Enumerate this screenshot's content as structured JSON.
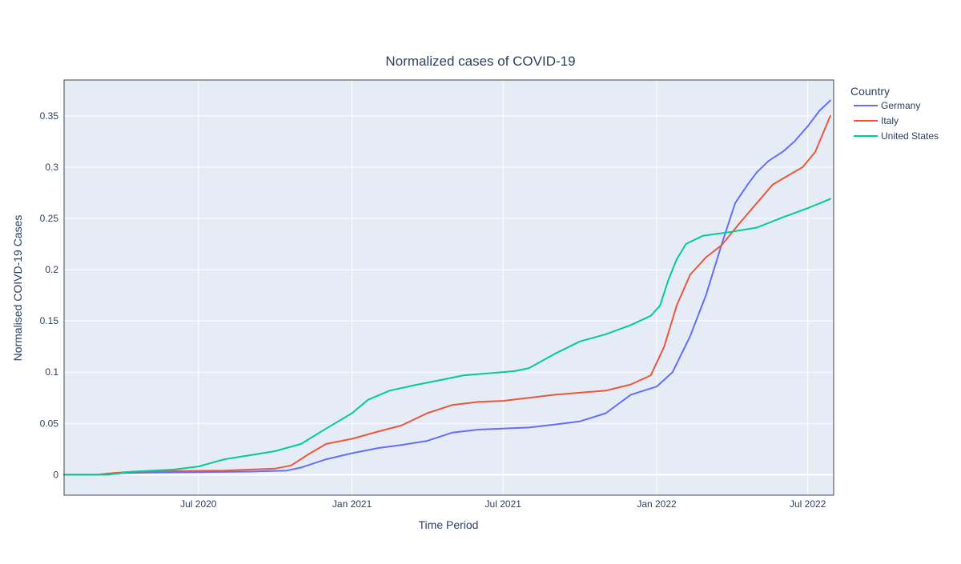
{
  "chart_data": {
    "type": "line",
    "title": "Normalized cases of COVID-19",
    "xlabel": "Time Period",
    "ylabel": "Normalised COIVD-19 Cases",
    "legend_title": "Country",
    "legend_position": "top-right, outside plot",
    "grid": true,
    "plot_background": "#E5ECF6",
    "xlim": [
      "2020-01-22",
      "2022-08-01"
    ],
    "ylim": [
      -0.02,
      0.385
    ],
    "x_ticks": [
      {
        "label": "Jul 2020",
        "date": "2020-07-01"
      },
      {
        "label": "Jan 2021",
        "date": "2021-01-01"
      },
      {
        "label": "Jul 2021",
        "date": "2021-07-01"
      },
      {
        "label": "Jan 2022",
        "date": "2022-01-01"
      },
      {
        "label": "Jul 2022",
        "date": "2022-07-01"
      }
    ],
    "y_ticks": [
      {
        "label": "0",
        "value": 0
      },
      {
        "label": "0.05",
        "value": 0.05
      },
      {
        "label": "0.1",
        "value": 0.1
      },
      {
        "label": "0.15",
        "value": 0.15
      },
      {
        "label": "0.2",
        "value": 0.2
      },
      {
        "label": "0.25",
        "value": 0.25
      },
      {
        "label": "0.3",
        "value": 0.3
      },
      {
        "label": "0.35",
        "value": 0.35
      }
    ],
    "series": [
      {
        "name": "Germany",
        "color": "#636EFA",
        "points": [
          [
            "2020-01-22",
            0
          ],
          [
            "2020-03-01",
            0
          ],
          [
            "2020-04-01",
            0.0015
          ],
          [
            "2020-05-01",
            0.002
          ],
          [
            "2020-07-01",
            0.0025
          ],
          [
            "2020-09-01",
            0.003
          ],
          [
            "2020-10-15",
            0.004
          ],
          [
            "2020-11-01",
            0.007
          ],
          [
            "2020-12-01",
            0.015
          ],
          [
            "2021-01-01",
            0.021
          ],
          [
            "2021-02-01",
            0.026
          ],
          [
            "2021-03-01",
            0.029
          ],
          [
            "2021-04-01",
            0.033
          ],
          [
            "2021-05-01",
            0.041
          ],
          [
            "2021-06-01",
            0.044
          ],
          [
            "2021-07-01",
            0.045
          ],
          [
            "2021-08-01",
            0.046
          ],
          [
            "2021-09-01",
            0.049
          ],
          [
            "2021-10-01",
            0.052
          ],
          [
            "2021-11-01",
            0.06
          ],
          [
            "2021-12-01",
            0.078
          ],
          [
            "2022-01-01",
            0.086
          ],
          [
            "2022-01-20",
            0.1
          ],
          [
            "2022-02-10",
            0.135
          ],
          [
            "2022-03-01",
            0.175
          ],
          [
            "2022-03-20",
            0.225
          ],
          [
            "2022-04-05",
            0.265
          ],
          [
            "2022-04-20",
            0.283
          ],
          [
            "2022-05-01",
            0.295
          ],
          [
            "2022-05-15",
            0.306
          ],
          [
            "2022-06-01",
            0.315
          ],
          [
            "2022-06-15",
            0.325
          ],
          [
            "2022-07-01",
            0.34
          ],
          [
            "2022-07-15",
            0.355
          ],
          [
            "2022-07-28",
            0.365
          ]
        ]
      },
      {
        "name": "Italy",
        "color": "#EF553B",
        "points": [
          [
            "2020-01-22",
            0
          ],
          [
            "2020-03-01",
            0
          ],
          [
            "2020-03-20",
            0.0015
          ],
          [
            "2020-04-15",
            0.003
          ],
          [
            "2020-06-01",
            0.0035
          ],
          [
            "2020-08-01",
            0.004
          ],
          [
            "2020-10-01",
            0.006
          ],
          [
            "2020-10-20",
            0.009
          ],
          [
            "2020-11-10",
            0.02
          ],
          [
            "2020-12-01",
            0.03
          ],
          [
            "2021-01-01",
            0.035
          ],
          [
            "2021-02-01",
            0.042
          ],
          [
            "2021-03-01",
            0.048
          ],
          [
            "2021-04-01",
            0.06
          ],
          [
            "2021-05-01",
            0.068
          ],
          [
            "2021-06-01",
            0.071
          ],
          [
            "2021-07-01",
            0.072
          ],
          [
            "2021-08-01",
            0.075
          ],
          [
            "2021-09-01",
            0.078
          ],
          [
            "2021-10-01",
            0.08
          ],
          [
            "2021-11-01",
            0.082
          ],
          [
            "2021-12-01",
            0.088
          ],
          [
            "2021-12-25",
            0.097
          ],
          [
            "2022-01-10",
            0.125
          ],
          [
            "2022-01-25",
            0.165
          ],
          [
            "2022-02-10",
            0.195
          ],
          [
            "2022-03-01",
            0.212
          ],
          [
            "2022-03-20",
            0.224
          ],
          [
            "2022-04-10",
            0.245
          ],
          [
            "2022-05-01",
            0.265
          ],
          [
            "2022-05-20",
            0.283
          ],
          [
            "2022-06-10",
            0.293
          ],
          [
            "2022-06-25",
            0.3
          ],
          [
            "2022-07-10",
            0.315
          ],
          [
            "2022-07-28",
            0.35
          ]
        ]
      },
      {
        "name": "United States",
        "color": "#00CC96",
        "points": [
          [
            "2020-01-22",
            0
          ],
          [
            "2020-03-15",
            0
          ],
          [
            "2020-04-15",
            0.003
          ],
          [
            "2020-06-01",
            0.005
          ],
          [
            "2020-07-01",
            0.008
          ],
          [
            "2020-08-01",
            0.015
          ],
          [
            "2020-09-01",
            0.019
          ],
          [
            "2020-10-01",
            0.023
          ],
          [
            "2020-11-01",
            0.03
          ],
          [
            "2020-12-01",
            0.045
          ],
          [
            "2021-01-01",
            0.06
          ],
          [
            "2021-01-20",
            0.073
          ],
          [
            "2021-02-15",
            0.082
          ],
          [
            "2021-03-15",
            0.087
          ],
          [
            "2021-04-15",
            0.092
          ],
          [
            "2021-05-15",
            0.097
          ],
          [
            "2021-06-15",
            0.099
          ],
          [
            "2021-07-15",
            0.101
          ],
          [
            "2021-08-01",
            0.104
          ],
          [
            "2021-09-01",
            0.118
          ],
          [
            "2021-10-01",
            0.13
          ],
          [
            "2021-11-01",
            0.137
          ],
          [
            "2021-12-01",
            0.146
          ],
          [
            "2021-12-25",
            0.155
          ],
          [
            "2022-01-05",
            0.165
          ],
          [
            "2022-01-15",
            0.19
          ],
          [
            "2022-01-25",
            0.21
          ],
          [
            "2022-02-05",
            0.225
          ],
          [
            "2022-02-25",
            0.233
          ],
          [
            "2022-04-01",
            0.237
          ],
          [
            "2022-05-01",
            0.241
          ],
          [
            "2022-06-01",
            0.251
          ],
          [
            "2022-07-01",
            0.26
          ],
          [
            "2022-07-28",
            0.269
          ]
        ]
      }
    ]
  }
}
